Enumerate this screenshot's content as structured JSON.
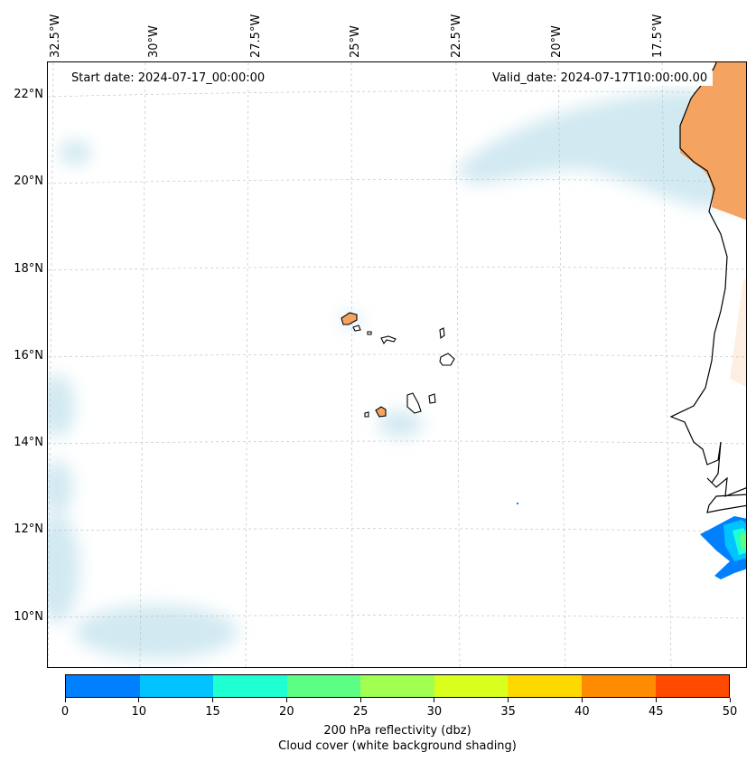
{
  "map": {
    "start_date": "Start date: 2024-07-17_00:00:00",
    "valid_date": "Valid_date: 2024-07-17T10:00:00.00",
    "lon_labels": [
      "32.5°W",
      "30°W",
      "27.5°W",
      "25°W",
      "22.5°W",
      "20°W",
      "17.5°W"
    ],
    "lat_labels": [
      "22°N",
      "20°N",
      "18°N",
      "16°N",
      "14°N",
      "12°N",
      "10°N"
    ],
    "land_color": "#f4a460",
    "cloud_color": "#add8e6",
    "coastline_color": "#000000"
  },
  "colorbar": {
    "ticks": [
      "0",
      "10",
      "15",
      "20",
      "25",
      "30",
      "35",
      "40",
      "45",
      "50"
    ],
    "colors": [
      "#0080ff",
      "#00c3ff",
      "#1effd2",
      "#5cff84",
      "#a0ff50",
      "#d8ff1e",
      "#ffd800",
      "#ff8c00",
      "#ff4a00"
    ],
    "label_line1": "200 hPa reflectivity (dbz)",
    "label_line2": "Cloud cover (white background shading)"
  }
}
